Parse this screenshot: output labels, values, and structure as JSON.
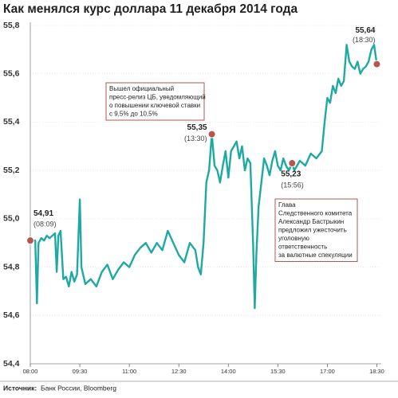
{
  "chart_data": {
    "type": "line",
    "title": "Как менялся курс доллара 11 декабря 2014 года",
    "source_label": "Источник:",
    "source": "Банк России, Bloomberg",
    "xlim": [
      480,
      1118
    ],
    "ylim": [
      54.4,
      55.8
    ],
    "xticks": [
      {
        "value": 480,
        "label": "08:00"
      },
      {
        "value": 570,
        "label": "09:30"
      },
      {
        "value": 660,
        "label": "11:00"
      },
      {
        "value": 750,
        "label": "12:30"
      },
      {
        "value": 840,
        "label": "14:00"
      },
      {
        "value": 930,
        "label": "15:30"
      },
      {
        "value": 1020,
        "label": "17:00"
      },
      {
        "value": 1110,
        "label": "18:30"
      }
    ],
    "yticks": [
      {
        "value": 54.4,
        "label": "54,4"
      },
      {
        "value": 54.6,
        "label": "54,6"
      },
      {
        "value": 54.8,
        "label": "54,8"
      },
      {
        "value": 55.0,
        "label": "55,0"
      },
      {
        "value": 55.2,
        "label": "55,2"
      },
      {
        "value": 55.4,
        "label": "55,4"
      },
      {
        "value": 55.6,
        "label": "55,6"
      },
      {
        "value": 55.8,
        "label": "55,8"
      }
    ],
    "grid": true,
    "series": [
      {
        "color": "#1fa9a3",
        "x": [
          480,
          483,
          486,
          489,
          492,
          495,
          500,
          505,
          510,
          515,
          520,
          525,
          528,
          531,
          535,
          540,
          545,
          550,
          555,
          560,
          565,
          570,
          573,
          580,
          590,
          600,
          610,
          620,
          630,
          640,
          650,
          660,
          670,
          680,
          690,
          700,
          710,
          720,
          730,
          740,
          750,
          760,
          770,
          780,
          785,
          790,
          795,
          800,
          805,
          810,
          815,
          820,
          825,
          830,
          835,
          840,
          845,
          850,
          855,
          860,
          865,
          870,
          875,
          880,
          885,
          888,
          891,
          895,
          900,
          905,
          910,
          915,
          920,
          925,
          930,
          935,
          940,
          945,
          950,
          956,
          960,
          970,
          980,
          990,
          1000,
          1010,
          1015,
          1020,
          1025,
          1030,
          1035,
          1040,
          1045,
          1050,
          1055,
          1060,
          1065,
          1070,
          1075,
          1080,
          1085,
          1090,
          1095,
          1100,
          1105,
          1110
        ],
        "values": [
          54.9,
          54.92,
          54.91,
          54.91,
          54.65,
          54.9,
          54.92,
          54.91,
          54.93,
          54.92,
          54.93,
          54.94,
          54.78,
          54.93,
          54.95,
          54.75,
          54.76,
          54.72,
          54.78,
          54.74,
          54.77,
          55.08,
          54.8,
          54.73,
          54.75,
          54.72,
          54.78,
          54.81,
          54.75,
          54.79,
          54.82,
          54.8,
          54.85,
          54.88,
          54.9,
          54.86,
          54.9,
          54.87,
          54.95,
          54.9,
          54.85,
          54.82,
          54.9,
          54.87,
          54.8,
          54.77,
          54.9,
          55.15,
          55.2,
          55.35,
          55.22,
          55.2,
          55.15,
          55.22,
          55.28,
          55.17,
          55.28,
          55.3,
          55.32,
          55.25,
          55.3,
          55.2,
          55.25,
          55.23,
          54.9,
          54.63,
          54.85,
          55.05,
          55.15,
          55.25,
          55.22,
          55.18,
          55.24,
          55.28,
          55.22,
          55.2,
          55.25,
          55.22,
          55.2,
          55.23,
          55.2,
          55.24,
          55.22,
          55.27,
          55.25,
          55.28,
          55.4,
          55.5,
          55.48,
          55.55,
          55.52,
          55.58,
          55.55,
          55.57,
          55.72,
          55.65,
          55.63,
          55.62,
          55.65,
          55.6,
          55.62,
          55.63,
          55.65,
          55.7,
          55.72,
          55.64
        ]
      }
    ],
    "points": [
      {
        "x": 480,
        "value": 54.91,
        "label": "54,91",
        "time": "(08:09)"
      },
      {
        "x": 810,
        "value": 55.35,
        "label": "55,35",
        "time": "(13:30)"
      },
      {
        "x": 956,
        "value": 55.23,
        "label": "55,23",
        "time": "(15:56)"
      },
      {
        "x": 1110,
        "value": 55.64,
        "label": "55,64",
        "time": "(18:30)"
      }
    ],
    "notes": [
      [
        "Вышел официальный",
        "пресс-релиз ЦБ, уведомляющий",
        "о повышении ключевой ставки",
        "с 9,5% до 10,5%"
      ],
      [
        "Глава",
        "Следственного комитета",
        "Александр Бастрыкин",
        "предложил ужесточить",
        "уголовную",
        "ответственность",
        "за валютные спекуляции"
      ]
    ]
  }
}
